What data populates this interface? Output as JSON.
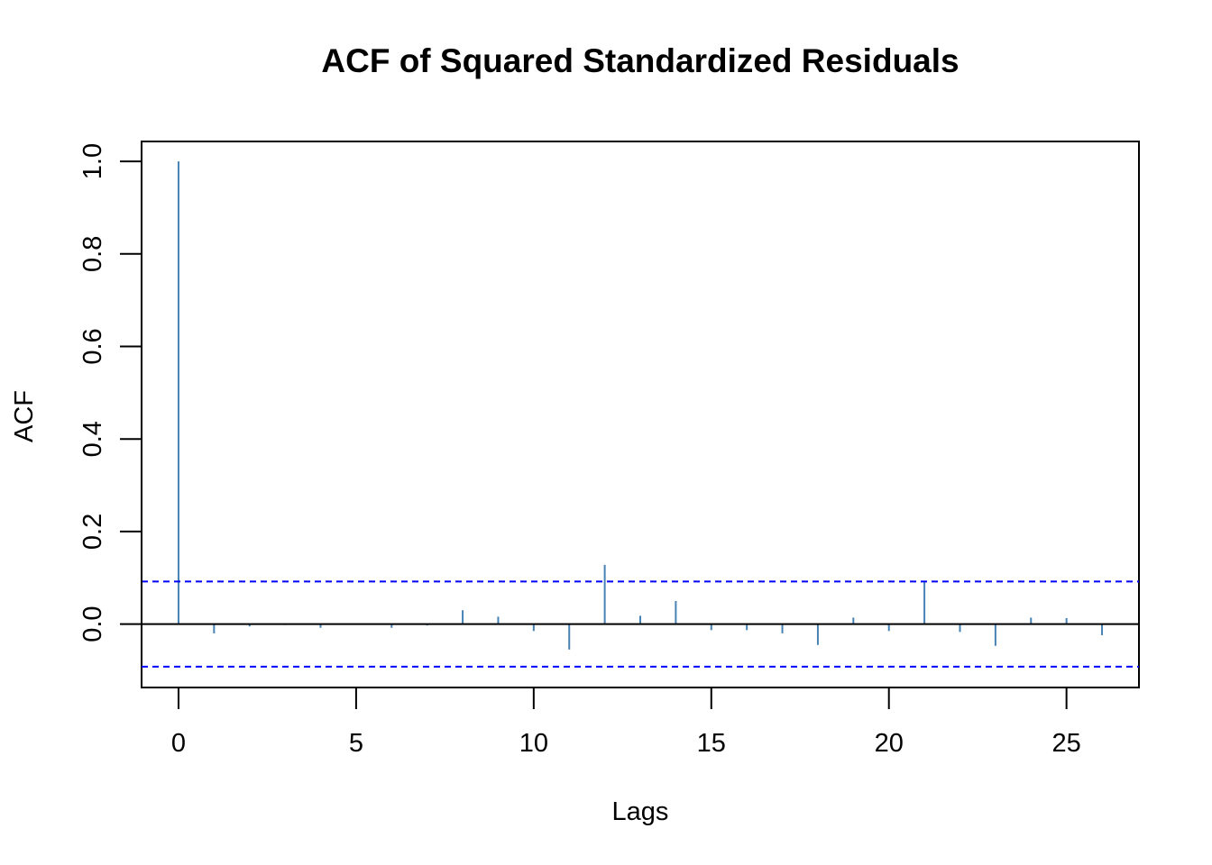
{
  "chart_data": {
    "type": "bar",
    "title": "ACF of Squared Standardized Residuals",
    "xlabel": "Lags",
    "ylabel": "ACF",
    "xlim": [
      -1.04,
      27.04
    ],
    "ylim": [
      -0.137,
      1.043
    ],
    "x_ticks": [
      "0",
      "5",
      "10",
      "15",
      "20",
      "25"
    ],
    "y_ticks": [
      "0.0",
      "0.2",
      "0.4",
      "0.6",
      "0.8",
      "1.0"
    ],
    "confidence_bound": 0.092,
    "grid": false,
    "series": [
      {
        "x": [
          0,
          1,
          2,
          3,
          4,
          5,
          6,
          7,
          8,
          9,
          10,
          11,
          12,
          13,
          14,
          15,
          16,
          17,
          18,
          19,
          20,
          21,
          22,
          23,
          24,
          25,
          26
        ],
        "values": [
          1.0,
          -0.02,
          -0.005,
          -0.002,
          -0.008,
          0.0,
          -0.008,
          -0.003,
          0.03,
          0.016,
          -0.015,
          -0.055,
          0.128,
          0.018,
          0.05,
          -0.013,
          -0.013,
          -0.02,
          -0.045,
          0.014,
          -0.015,
          0.092,
          -0.017,
          -0.047,
          0.014,
          0.013,
          -0.024
        ]
      }
    ],
    "colors": {
      "bar": "#4682B4",
      "confidence_line": "#0000FF",
      "zero_line": "#000000",
      "frame": "#000000"
    }
  }
}
